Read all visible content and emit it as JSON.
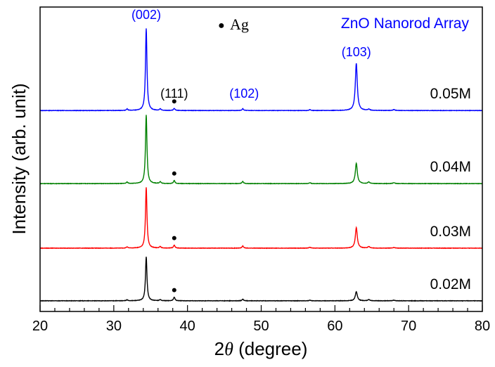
{
  "chart_data": {
    "type": "line",
    "title": "ZnO Nanorod Array",
    "xlabel_prefix": "2",
    "xlabel_symbol": "θ",
    "xlabel_suffix": " (degree)",
    "ylabel": "Intensity (arb. unit)",
    "xlim": [
      20,
      80
    ],
    "ylim": [
      0,
      100
    ],
    "x_ticks": [
      "20",
      "30",
      "40",
      "50",
      "60",
      "70",
      "80"
    ],
    "x_tick_values": [
      20,
      30,
      40,
      50,
      60,
      70,
      80
    ],
    "minor_tick_step": 2,
    "legend": {
      "marker": "●",
      "label": "Ag"
    },
    "peak_labels": [
      {
        "text": "(002)",
        "x": 34.4,
        "color": "#0000ff"
      },
      {
        "text": "(111)",
        "x": 38.2,
        "color": "#000000"
      },
      {
        "text": "(102)",
        "x": 47.5,
        "color": "#0000ff"
      },
      {
        "text": "(103)",
        "x": 62.9,
        "color": "#0000ff"
      }
    ],
    "ag_marker_x": 38.2,
    "series": [
      {
        "name": "0.05M",
        "color": "#0000ff",
        "baseline": 66,
        "peaks": [
          [
            31.8,
            0.5
          ],
          [
            34.4,
            27
          ],
          [
            36.3,
            0.5
          ],
          [
            38.2,
            0.7
          ],
          [
            47.5,
            0.6
          ],
          [
            56.6,
            0.3
          ],
          [
            62.9,
            15.5
          ],
          [
            64.6,
            0.4
          ],
          [
            68.0,
            0.3
          ]
        ]
      },
      {
        "name": "0.04M",
        "color": "#008000",
        "baseline": 42,
        "peaks": [
          [
            31.8,
            0.5
          ],
          [
            34.4,
            22.6
          ],
          [
            36.3,
            0.6
          ],
          [
            38.2,
            1.0
          ],
          [
            47.5,
            0.7
          ],
          [
            56.6,
            0.3
          ],
          [
            62.9,
            6.7
          ],
          [
            64.6,
            0.5
          ],
          [
            68.0,
            0.3
          ]
        ]
      },
      {
        "name": "0.03M",
        "color": "#ff0000",
        "baseline": 20.8,
        "peaks": [
          [
            31.8,
            0.4
          ],
          [
            34.4,
            20
          ],
          [
            36.3,
            0.5
          ],
          [
            38.2,
            1.0
          ],
          [
            47.5,
            0.7
          ],
          [
            56.6,
            0.3
          ],
          [
            62.9,
            6.7
          ],
          [
            64.6,
            0.5
          ],
          [
            68.0,
            0.2
          ]
        ]
      },
      {
        "name": "0.02M",
        "color": "#000000",
        "baseline": 3.5,
        "peaks": [
          [
            31.8,
            0.3
          ],
          [
            34.4,
            14.5
          ],
          [
            36.3,
            0.4
          ],
          [
            38.2,
            1.2
          ],
          [
            47.5,
            0.5
          ],
          [
            56.6,
            0.2
          ],
          [
            62.9,
            3.0
          ],
          [
            64.6,
            0.4
          ],
          [
            68.0,
            0.2
          ]
        ]
      }
    ]
  }
}
